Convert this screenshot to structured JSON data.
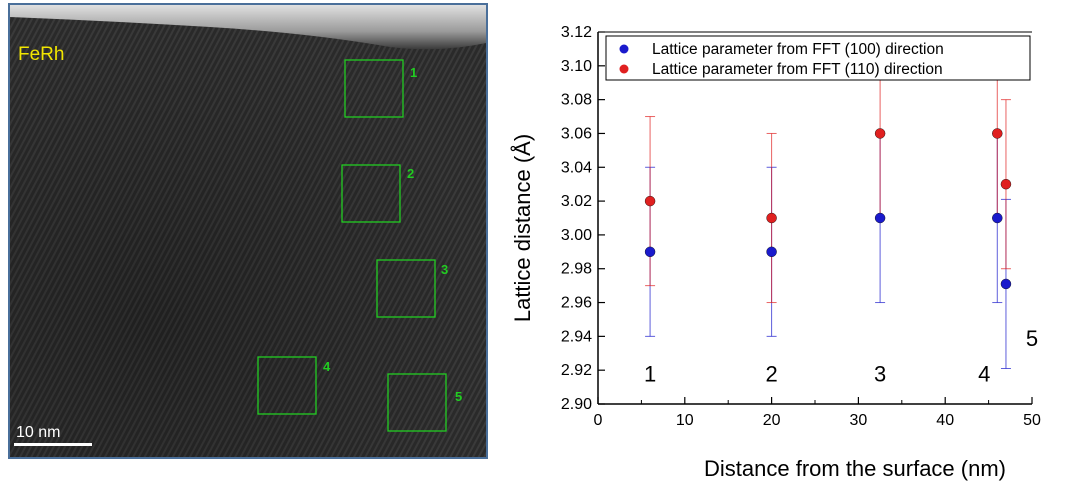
{
  "micrograph": {
    "material_label": "FeRh",
    "scale_bar_label": "10 nm",
    "region_labels": [
      "1",
      "2",
      "3",
      "4",
      "5"
    ],
    "label_color": "#f2e600",
    "box_color": "#22cc22"
  },
  "chart_data": {
    "type": "scatter",
    "title": "",
    "xlabel": "Distance from the surface (nm)",
    "ylabel": "Lattice distance  (Å)",
    "xlim": [
      0,
      50
    ],
    "ylim": [
      2.9,
      3.12
    ],
    "xticks": [
      "0",
      "10",
      "20",
      "30",
      "40",
      "50"
    ],
    "yticks": [
      "2.90",
      "2.92",
      "2.94",
      "2.96",
      "2.98",
      "3.00",
      "3.02",
      "3.04",
      "3.06",
      "3.08",
      "3.10",
      "3.12"
    ],
    "grid": false,
    "legend_position": "top",
    "series": [
      {
        "name": "Lattice parameter from FFT (100) direction",
        "color": "#1a1acc",
        "x": [
          6,
          20,
          32.5,
          46,
          47
        ],
        "y": [
          2.99,
          2.99,
          3.01,
          3.01,
          2.971
        ],
        "err": [
          0.05,
          0.05,
          0.05,
          0.05,
          0.05
        ]
      },
      {
        "name": "Lattice parameter from FFT (110) direction",
        "color": "#e02020",
        "x": [
          6,
          20,
          32.5,
          46,
          47
        ],
        "y": [
          3.02,
          3.01,
          3.06,
          3.06,
          3.03
        ],
        "err": [
          0.05,
          0.05,
          0.05,
          0.05,
          0.05
        ]
      }
    ],
    "annotations": [
      {
        "text": "1",
        "x": 6,
        "y": 2.918
      },
      {
        "text": "2",
        "x": 20,
        "y": 2.918
      },
      {
        "text": "3",
        "x": 32.5,
        "y": 2.918
      },
      {
        "text": "4",
        "x": 44.5,
        "y": 2.918
      },
      {
        "text": "5",
        "x": 50,
        "y": 2.939
      }
    ]
  }
}
